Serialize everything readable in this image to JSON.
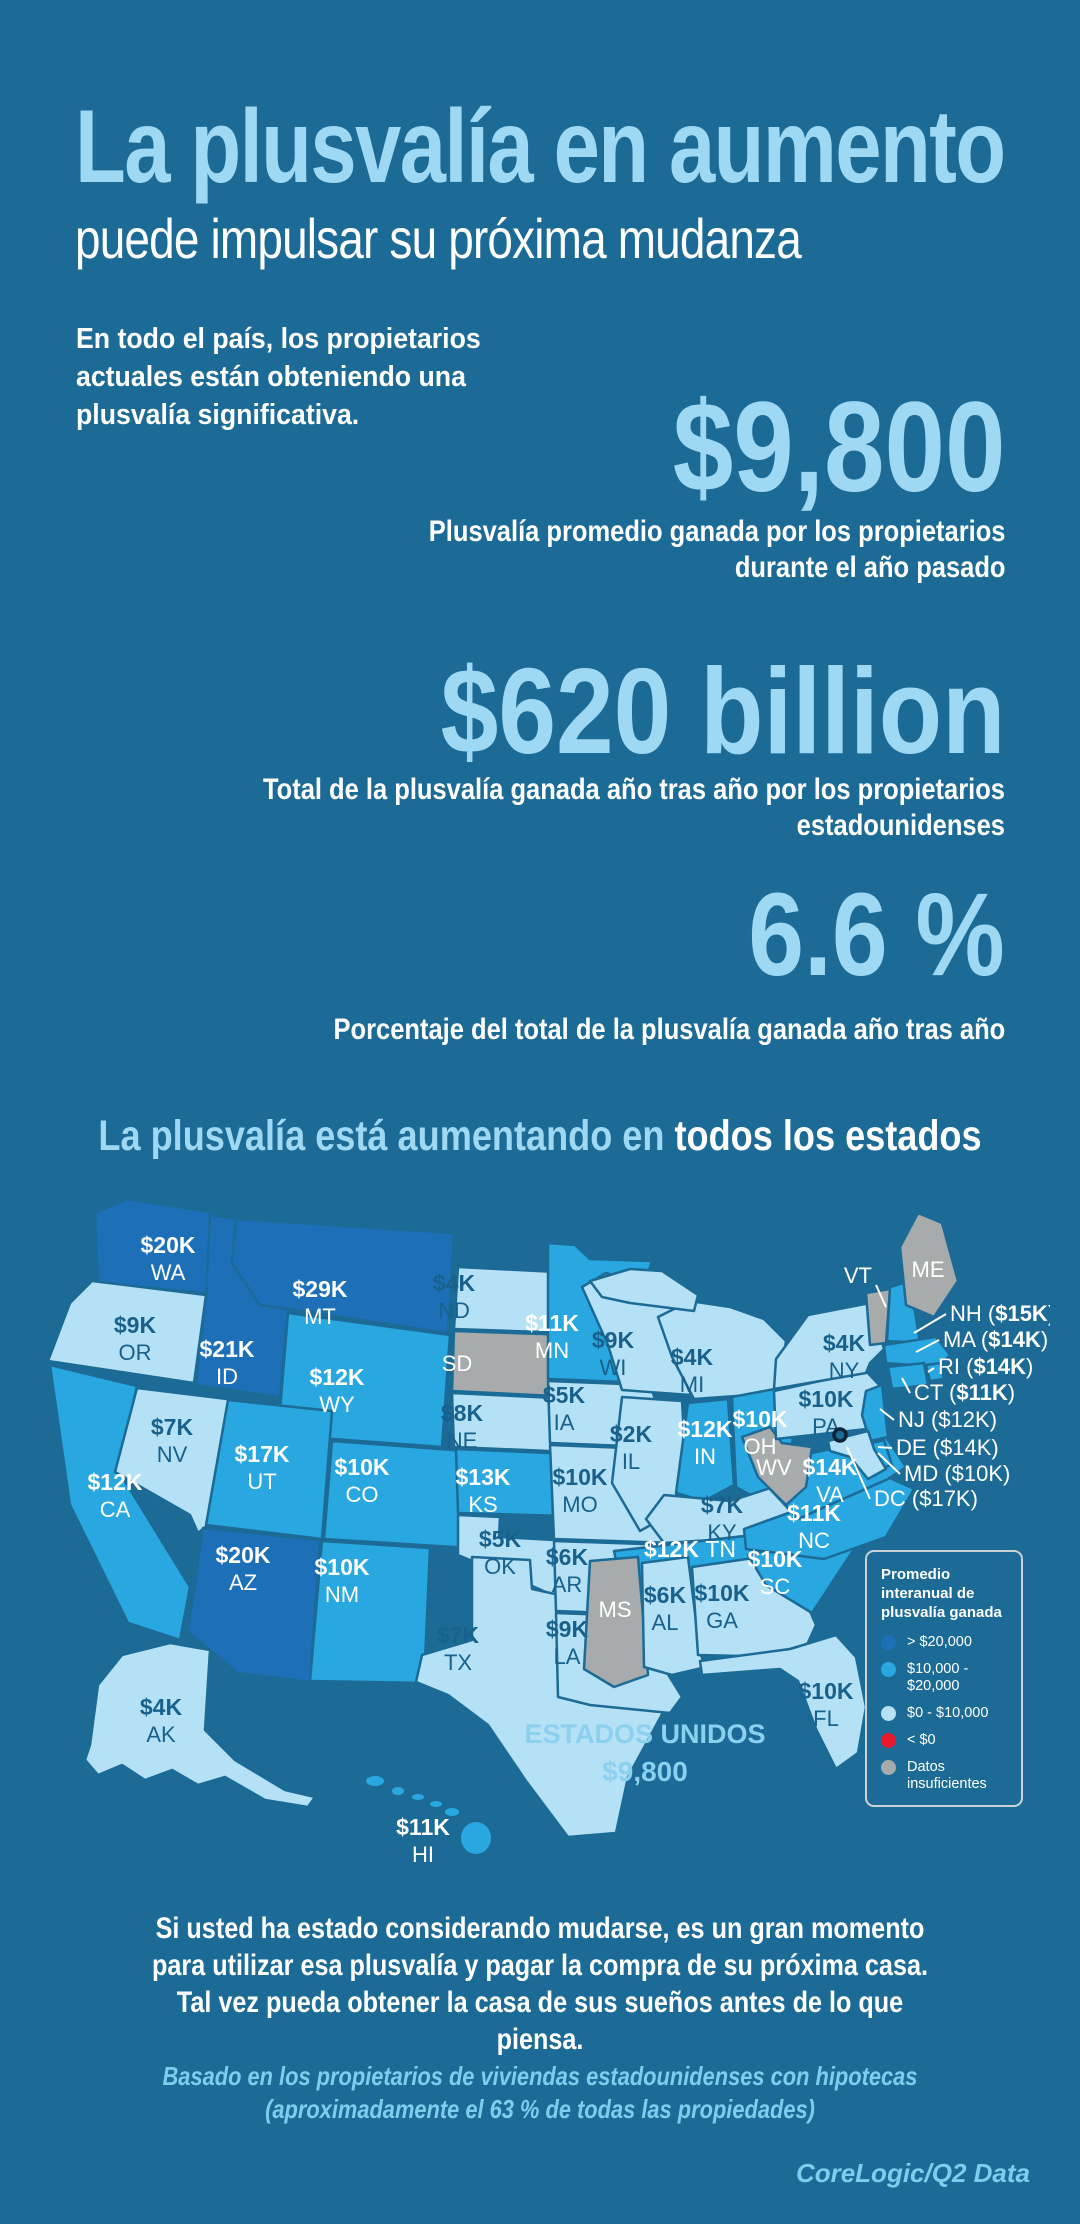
{
  "theme": {
    "background": "#1c6b97",
    "accent_light": "#9ed8f3",
    "white": "#ffffff",
    "note_blue": "#7ecdec",
    "us_label_blue": "#8cd0ef",
    "state_text_dark": "#17618c",
    "map_border": "#1c6b97"
  },
  "header": {
    "title": "La plusvalía en aumento",
    "subtitle": "puede impulsar su próxima mudanza"
  },
  "intro": {
    "lines": [
      "En todo el país, los propietarios",
      "actuales están obteniendo una",
      "plusvalía significativa."
    ]
  },
  "stats": [
    {
      "value": "$9,800",
      "caption_lines": [
        "Plusvalía promedio ganada por los propietarios",
        "durante el año pasado"
      ]
    },
    {
      "value": "$620 billion",
      "caption_lines": [
        "Total de la plusvalía ganada año tras año por los propietarios",
        "estadounidenses"
      ]
    },
    {
      "value": "6.6 %",
      "caption_lines": [
        "Porcentaje del total de la plusvalía ganada año tras año"
      ]
    }
  ],
  "map_section": {
    "heading_highlight": "La plusvalía está aumentando en ",
    "heading_emphasis": "todos los estados",
    "us_label": "ESTADOS UNIDOS",
    "us_value": "$9,800",
    "legend": {
      "title": "Promedio interanual de plusvalía ganada",
      "items": [
        {
          "label": "> $20,000",
          "color": "#1d70b8",
          "category": "high"
        },
        {
          "label": "$10,000 - $20,000",
          "color": "#29a7e0",
          "category": "mid"
        },
        {
          "label": "$0 - $10,000",
          "color": "#b5e1f6",
          "category": "low"
        },
        {
          "label": "< $0",
          "color": "#e8192c",
          "category": "neg"
        },
        {
          "label": "Datos insuficientes",
          "color": "#a7abab",
          "category": "na"
        }
      ]
    }
  },
  "chart_data": {
    "type": "heatmap",
    "subtype": "us-choropleth-map",
    "title": "La plusvalía está aumentando en todos los estados",
    "legend_title": "Promedio interanual de plusvalía ganada",
    "bins": [
      "> $20,000",
      "$10,000 - $20,000",
      "$0 - $10,000",
      "< $0",
      "Datos insuficientes"
    ],
    "us_average": "$9,800",
    "states": [
      {
        "abbr": "WA",
        "value": "$20K",
        "category": "high"
      },
      {
        "abbr": "OR",
        "value": "$9K",
        "category": "low"
      },
      {
        "abbr": "CA",
        "value": "$12K",
        "category": "mid"
      },
      {
        "abbr": "NV",
        "value": "$7K",
        "category": "low"
      },
      {
        "abbr": "ID",
        "value": "$21K",
        "category": "high"
      },
      {
        "abbr": "MT",
        "value": "$29K",
        "category": "high"
      },
      {
        "abbr": "WY",
        "value": "$12K",
        "category": "mid"
      },
      {
        "abbr": "UT",
        "value": "$17K",
        "category": "mid"
      },
      {
        "abbr": "AZ",
        "value": "$20K",
        "category": "high"
      },
      {
        "abbr": "NM",
        "value": "$10K",
        "category": "mid"
      },
      {
        "abbr": "CO",
        "value": "$10K",
        "category": "mid"
      },
      {
        "abbr": "ND",
        "value": "$4K",
        "category": "low"
      },
      {
        "abbr": "SD",
        "value": null,
        "category": "na"
      },
      {
        "abbr": "NE",
        "value": "$8K",
        "category": "low"
      },
      {
        "abbr": "KS",
        "value": "$13K",
        "category": "mid"
      },
      {
        "abbr": "OK",
        "value": "$5K",
        "category": "low"
      },
      {
        "abbr": "TX",
        "value": "$7K",
        "category": "low"
      },
      {
        "abbr": "MN",
        "value": "$11K",
        "category": "mid"
      },
      {
        "abbr": "IA",
        "value": "$5K",
        "category": "low"
      },
      {
        "abbr": "MO",
        "value": "$10K",
        "category": "low"
      },
      {
        "abbr": "AR",
        "value": "$6K",
        "category": "low"
      },
      {
        "abbr": "LA",
        "value": "$9K",
        "category": "low"
      },
      {
        "abbr": "WI",
        "value": "$9K",
        "category": "low"
      },
      {
        "abbr": "IL",
        "value": "$2K",
        "category": "low"
      },
      {
        "abbr": "MI",
        "value": "$4K",
        "category": "low"
      },
      {
        "abbr": "IN",
        "value": "$12K",
        "category": "mid"
      },
      {
        "abbr": "OH",
        "value": "$10K",
        "category": "mid"
      },
      {
        "abbr": "KY",
        "value": "$7K",
        "category": "low"
      },
      {
        "abbr": "TN",
        "value": "$12K",
        "category": "mid"
      },
      {
        "abbr": "MS",
        "value": null,
        "category": "na"
      },
      {
        "abbr": "AL",
        "value": "$6K",
        "category": "low"
      },
      {
        "abbr": "GA",
        "value": "$10K",
        "category": "low"
      },
      {
        "abbr": "FL",
        "value": "$10K",
        "category": "low"
      },
      {
        "abbr": "SC",
        "value": "$10K",
        "category": "mid"
      },
      {
        "abbr": "NC",
        "value": "$11K",
        "category": "mid"
      },
      {
        "abbr": "VA",
        "value": "$14K",
        "category": "mid"
      },
      {
        "abbr": "WV",
        "value": null,
        "category": "na"
      },
      {
        "abbr": "PA",
        "value": "$10K",
        "category": "low"
      },
      {
        "abbr": "NY",
        "value": "$4K",
        "category": "low"
      },
      {
        "abbr": "VT",
        "value": null,
        "category": "na"
      },
      {
        "abbr": "NH",
        "value": "$15K",
        "category": "mid"
      },
      {
        "abbr": "ME",
        "value": null,
        "category": "na"
      },
      {
        "abbr": "MA",
        "value": "$14K",
        "category": "mid"
      },
      {
        "abbr": "RI",
        "value": "$14K",
        "category": "mid"
      },
      {
        "abbr": "CT",
        "value": "$11K",
        "category": "mid"
      },
      {
        "abbr": "NJ",
        "value": "$12K",
        "category": "mid"
      },
      {
        "abbr": "DE",
        "value": "$14K",
        "category": "mid"
      },
      {
        "abbr": "MD",
        "value": "$10K",
        "category": "low"
      },
      {
        "abbr": "DC",
        "value": "$17K",
        "category": "mid"
      },
      {
        "abbr": "AK",
        "value": "$4K",
        "category": "low"
      },
      {
        "abbr": "HI",
        "value": "$11K",
        "category": "mid"
      }
    ],
    "callouts": [
      {
        "abbr": "VT",
        "value": null,
        "bold": false
      },
      {
        "abbr": "NH",
        "value": "$15K",
        "bold": true
      },
      {
        "abbr": "MA",
        "value": "$14K",
        "bold": true
      },
      {
        "abbr": "RI",
        "value": "$14K",
        "bold": true
      },
      {
        "abbr": "CT",
        "value": "$11K",
        "bold": true
      },
      {
        "abbr": "NJ",
        "value": "$12K",
        "bold": false
      },
      {
        "abbr": "DE",
        "value": "$14K",
        "bold": false
      },
      {
        "abbr": "MD",
        "value": "$10K",
        "bold": false
      },
      {
        "abbr": "DC",
        "value": "$17K",
        "bold": false
      }
    ]
  },
  "footer": {
    "message_lines": [
      "Si usted ha estado considerando mudarse, es un gran momento",
      "para utilizar esa plusvalía y pagar la compra de su próxima casa.",
      "Tal vez pueda obtener la casa de sus sueños antes de lo que piensa."
    ],
    "note_lines": [
      "Basado en los propietarios de viviendas estadounidenses con hipotecas",
      "(aproximadamente el 63 % de todas las propiedades)"
    ],
    "credit": "CoreLogic/Q2 Data"
  }
}
